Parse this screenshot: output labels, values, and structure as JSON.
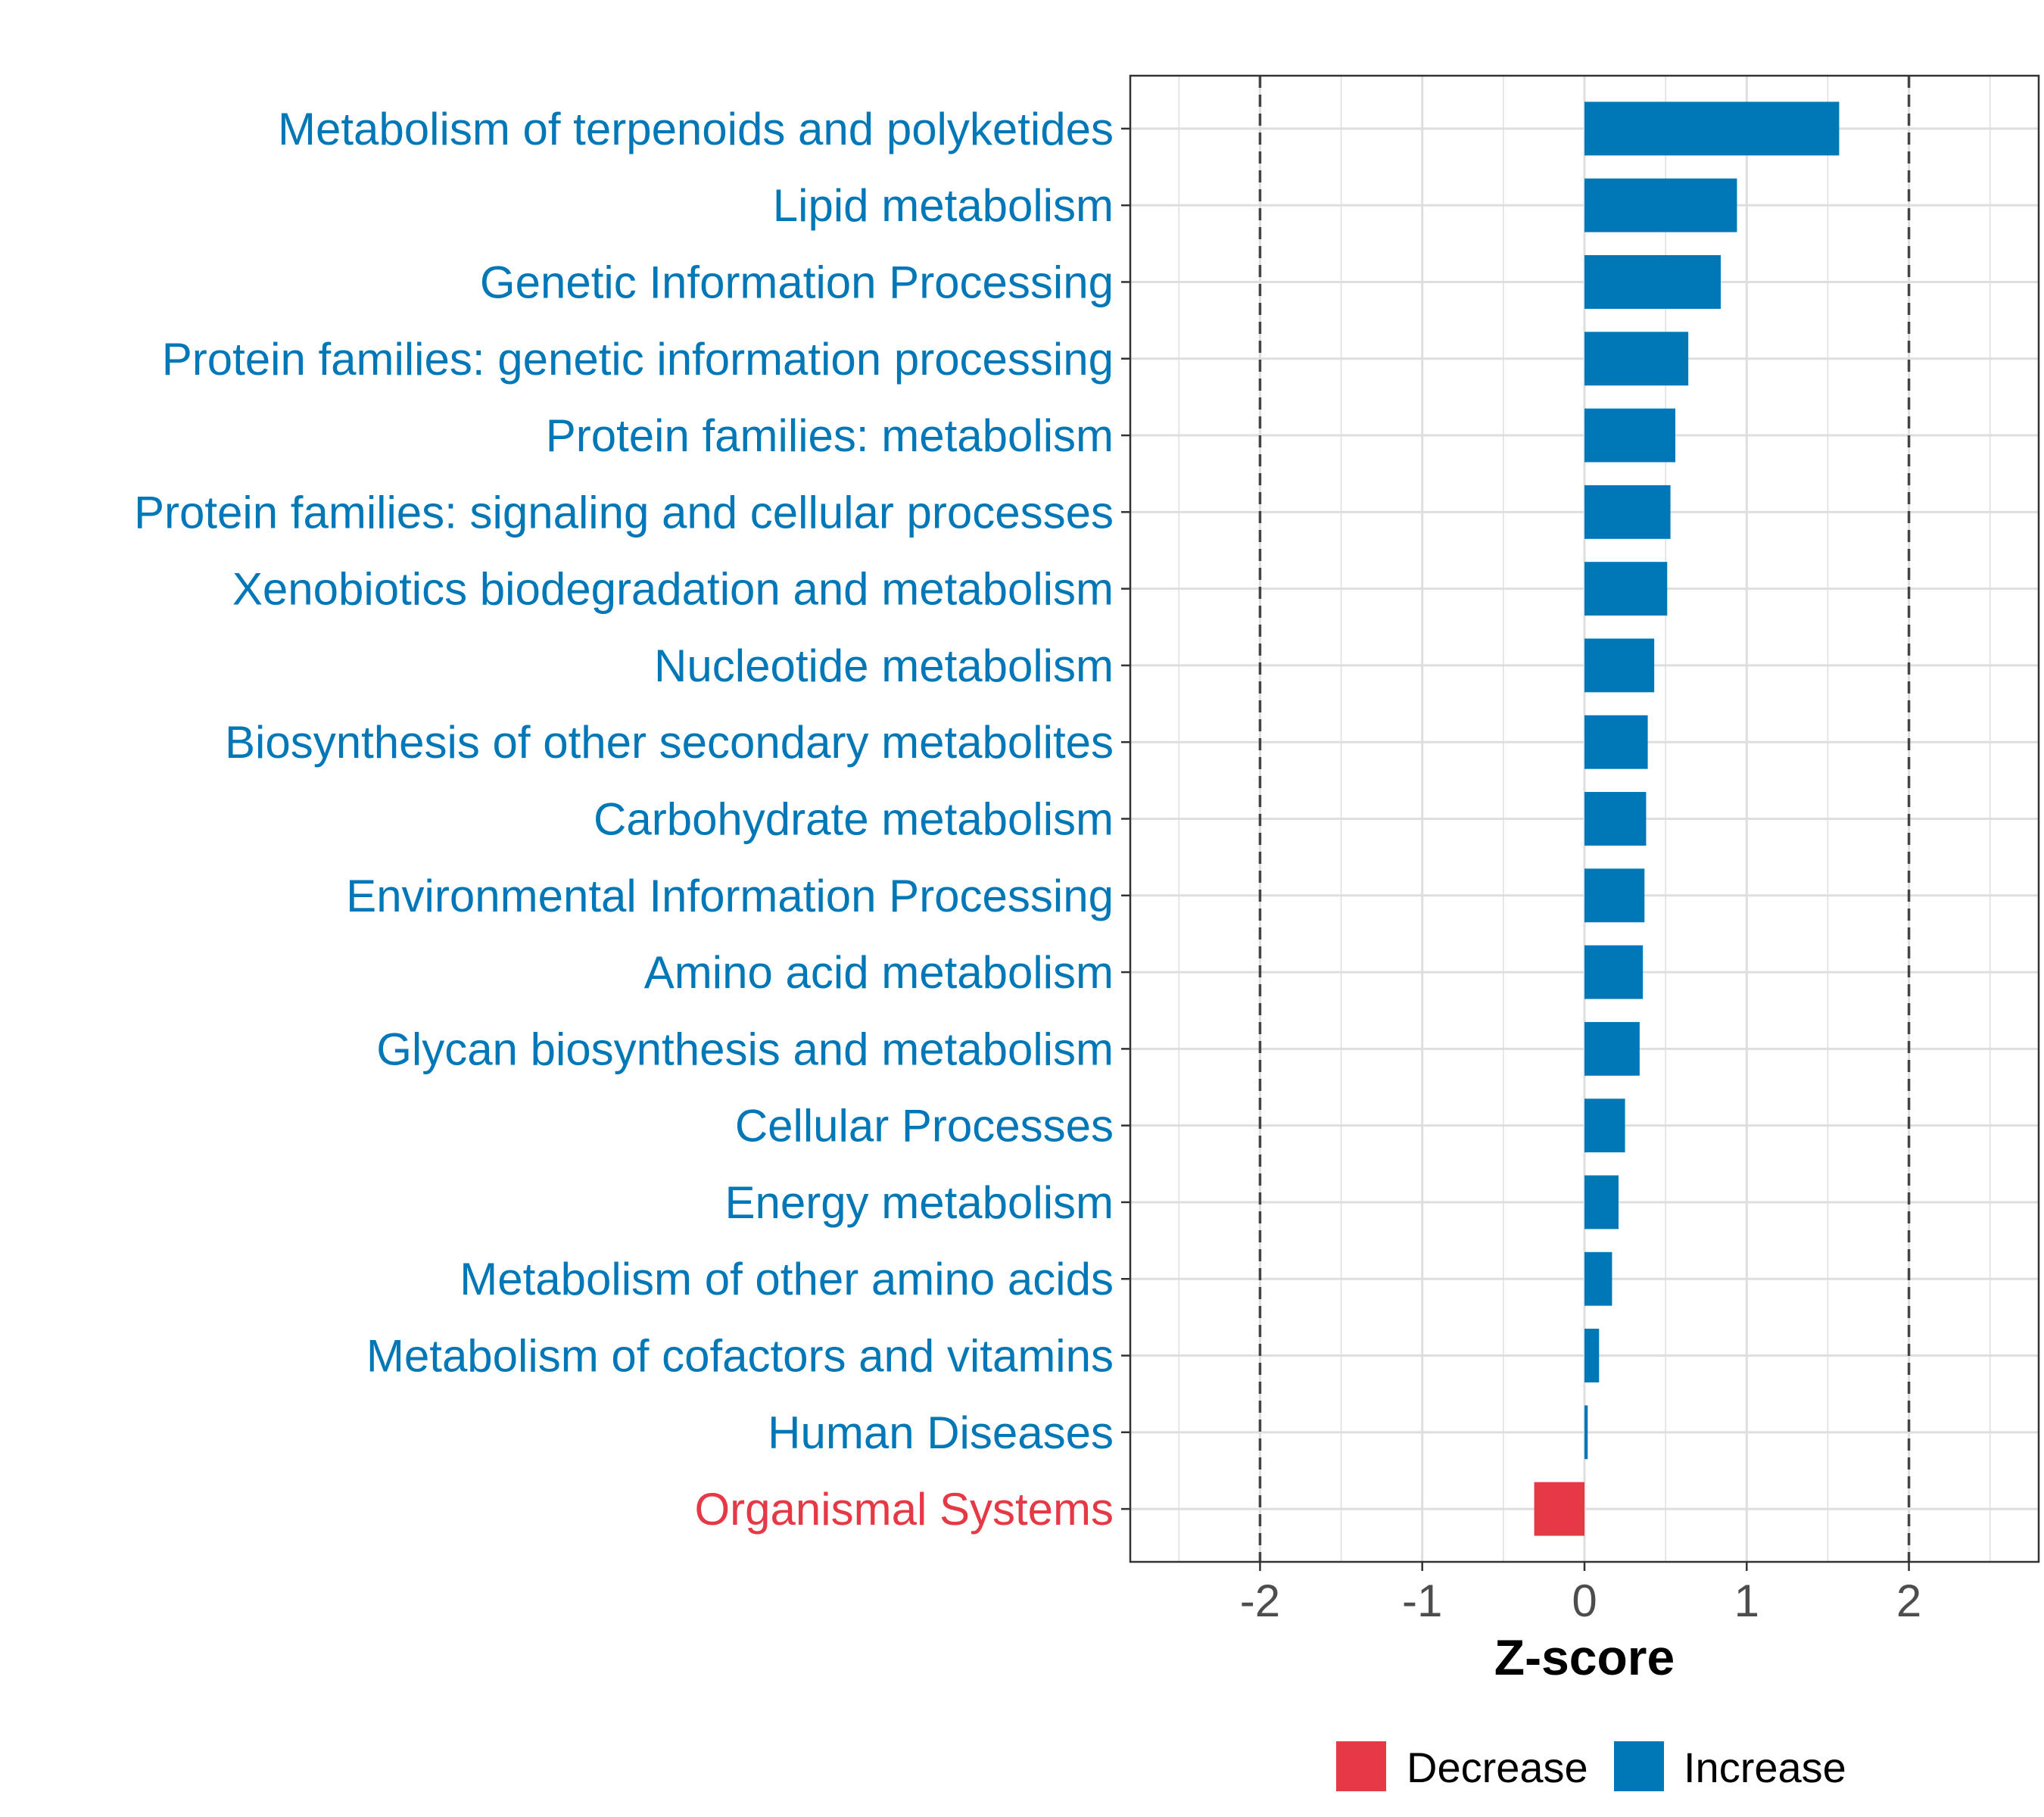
{
  "chart_data": {
    "type": "bar",
    "orientation": "horizontal",
    "title": "",
    "xlabel": "Z-score",
    "ylabel": "",
    "xlim": [
      -2.8,
      2.8
    ],
    "xticks": [
      -2,
      -1,
      0,
      1,
      2
    ],
    "xtick_labels": [
      "-2",
      "-1",
      "0",
      "1",
      "2"
    ],
    "reference_lines": [
      -2,
      2
    ],
    "grid": true,
    "colors": {
      "Increase": "#0077b6",
      "Decrease": "#e63946"
    },
    "categories": [
      "Metabolism of terpenoids and polyketides",
      "Lipid metabolism",
      "Genetic Information Processing",
      "Protein families: genetic information processing",
      "Protein families: metabolism",
      "Protein families: signaling and cellular processes",
      "Xenobiotics biodegradation and metabolism",
      "Nucleotide metabolism",
      "Biosynthesis of other secondary metabolites",
      "Carbohydrate metabolism",
      "Environmental Information Processing",
      "Amino acid metabolism",
      "Glycan biosynthesis and metabolism",
      "Cellular Processes",
      "Energy metabolism",
      "Metabolism of other amino acids",
      "Metabolism of cofactors and vitamins",
      "Human Diseases",
      "Organismal Systems"
    ],
    "values": [
      1.57,
      0.94,
      0.84,
      0.64,
      0.56,
      0.53,
      0.51,
      0.43,
      0.39,
      0.38,
      0.37,
      0.36,
      0.34,
      0.25,
      0.21,
      0.17,
      0.09,
      0.02,
      -0.31
    ],
    "groups": [
      "Increase",
      "Increase",
      "Increase",
      "Increase",
      "Increase",
      "Increase",
      "Increase",
      "Increase",
      "Increase",
      "Increase",
      "Increase",
      "Increase",
      "Increase",
      "Increase",
      "Increase",
      "Increase",
      "Increase",
      "Increase",
      "Decrease"
    ],
    "legend": {
      "position": "bottom",
      "entries": [
        "Decrease",
        "Increase"
      ]
    }
  }
}
